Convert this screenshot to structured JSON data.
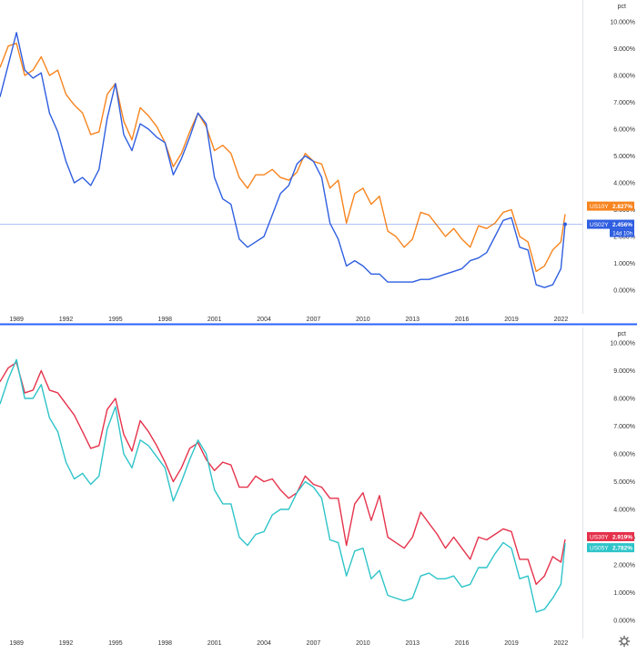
{
  "colors": {
    "us10y": "#f7841e",
    "us02y": "#2f5ee0",
    "us30y": "#e5324b",
    "us05y": "#2ec4c9",
    "axis_text": "#333333",
    "separator": "#2962ff",
    "grid": "#eeeeee"
  },
  "chart_data": [
    {
      "type": "line",
      "unit_label": "pct",
      "x_ticks": [
        "1989",
        "1992",
        "1995",
        "1998",
        "2001",
        "2004",
        "2007",
        "2010",
        "2013",
        "2016",
        "2019",
        "2022"
      ],
      "y_ticks": [
        "10.000%",
        "9.000%",
        "8.000%",
        "7.000%",
        "6.000%",
        "5.000%",
        "4.000%",
        "3.000%",
        "2.000%",
        "1.000%",
        "0.000%"
      ],
      "xlim": [
        1988.0,
        2023.3
      ],
      "ylim": [
        -0.4,
        10.2
      ],
      "legend": [
        {
          "symbol": "US10Y",
          "value": "2.827%"
        },
        {
          "symbol": "US02Y",
          "value": "2.456%",
          "countdown": "14d 10h"
        }
      ],
      "series": [
        {
          "name": "US10Y",
          "x": [
            1988.0,
            1988.5,
            1989.0,
            1989.5,
            1990.0,
            1990.5,
            1991.0,
            1991.5,
            1992.0,
            1992.5,
            1993.0,
            1993.5,
            1994.0,
            1994.5,
            1995.0,
            1995.5,
            1996.0,
            1996.5,
            1997.0,
            1997.5,
            1998.0,
            1998.5,
            1999.0,
            1999.5,
            2000.0,
            2000.5,
            2001.0,
            2001.5,
            2002.0,
            2002.5,
            2003.0,
            2003.5,
            2004.0,
            2004.5,
            2005.0,
            2005.5,
            2006.0,
            2006.5,
            2007.0,
            2007.5,
            2008.0,
            2008.5,
            2009.0,
            2009.5,
            2010.0,
            2010.5,
            2011.0,
            2011.5,
            2012.0,
            2012.5,
            2013.0,
            2013.5,
            2014.0,
            2014.5,
            2015.0,
            2015.5,
            2016.0,
            2016.5,
            2017.0,
            2017.5,
            2018.0,
            2018.5,
            2019.0,
            2019.5,
            2020.0,
            2020.5,
            2021.0,
            2021.5,
            2022.0,
            2022.25
          ],
          "values": [
            8.3,
            9.1,
            9.2,
            8.0,
            8.2,
            8.7,
            8.0,
            8.2,
            7.3,
            6.9,
            6.6,
            5.8,
            5.9,
            7.3,
            7.7,
            6.3,
            5.6,
            6.8,
            6.5,
            6.1,
            5.5,
            4.6,
            5.1,
            5.9,
            6.6,
            6.1,
            5.2,
            5.4,
            5.1,
            4.2,
            3.8,
            4.3,
            4.3,
            4.5,
            4.2,
            4.1,
            4.4,
            5.1,
            4.8,
            4.7,
            3.8,
            4.1,
            2.5,
            3.6,
            3.8,
            3.2,
            3.5,
            2.2,
            2.0,
            1.6,
            1.9,
            2.9,
            2.8,
            2.4,
            2.0,
            2.3,
            1.9,
            1.6,
            2.4,
            2.3,
            2.5,
            2.9,
            3.0,
            2.0,
            1.8,
            0.7,
            0.9,
            1.5,
            1.8,
            2.83
          ]
        },
        {
          "name": "US02Y",
          "x": [
            1988.0,
            1988.5,
            1989.0,
            1989.5,
            1990.0,
            1990.5,
            1991.0,
            1991.5,
            1992.0,
            1992.5,
            1993.0,
            1993.5,
            1994.0,
            1994.5,
            1995.0,
            1995.5,
            1996.0,
            1996.5,
            1997.0,
            1997.5,
            1998.0,
            1998.5,
            1999.0,
            1999.5,
            2000.0,
            2000.5,
            2001.0,
            2001.5,
            2002.0,
            2002.5,
            2003.0,
            2003.5,
            2004.0,
            2004.5,
            2005.0,
            2005.5,
            2006.0,
            2006.5,
            2007.0,
            2007.5,
            2008.0,
            2008.5,
            2009.0,
            2009.5,
            2010.0,
            2010.5,
            2011.0,
            2011.5,
            2012.0,
            2012.5,
            2013.0,
            2013.5,
            2014.0,
            2014.5,
            2015.0,
            2015.5,
            2016.0,
            2016.5,
            2017.0,
            2017.5,
            2018.0,
            2018.5,
            2019.0,
            2019.5,
            2020.0,
            2020.5,
            2021.0,
            2021.5,
            2022.0,
            2022.25
          ],
          "values": [
            7.2,
            8.4,
            9.6,
            8.2,
            7.9,
            8.1,
            6.6,
            5.9,
            4.8,
            4.0,
            4.2,
            3.9,
            4.5,
            6.4,
            7.7,
            5.8,
            5.2,
            6.2,
            6.0,
            5.7,
            5.5,
            4.3,
            4.9,
            5.7,
            6.6,
            6.2,
            4.2,
            3.4,
            3.2,
            1.9,
            1.6,
            1.8,
            2.0,
            2.8,
            3.6,
            3.9,
            4.7,
            5.0,
            4.8,
            4.2,
            2.5,
            1.9,
            0.9,
            1.1,
            0.9,
            0.6,
            0.6,
            0.3,
            0.3,
            0.3,
            0.3,
            0.4,
            0.4,
            0.5,
            0.6,
            0.7,
            0.8,
            1.1,
            1.2,
            1.4,
            2.0,
            2.6,
            2.7,
            1.6,
            1.5,
            0.2,
            0.1,
            0.2,
            0.8,
            2.456
          ]
        }
      ]
    },
    {
      "type": "line",
      "unit_label": "pct",
      "x_ticks": [
        "1989",
        "1992",
        "1995",
        "1998",
        "2001",
        "2004",
        "2007",
        "2010",
        "2013",
        "2016",
        "2019",
        "2022"
      ],
      "y_ticks": [
        "10.000%",
        "9.000%",
        "8.000%",
        "7.000%",
        "6.000%",
        "5.000%",
        "4.000%",
        "3.000%",
        "2.000%",
        "1.000%",
        "0.000%"
      ],
      "xlim": [
        1988.0,
        2023.3
      ],
      "ylim": [
        -0.4,
        10.2
      ],
      "legend": [
        {
          "symbol": "US30Y",
          "value": "2.919%"
        },
        {
          "symbol": "US05Y",
          "value": "2.782%"
        }
      ],
      "series": [
        {
          "name": "US30Y",
          "x": [
            1988.0,
            1988.5,
            1989.0,
            1989.5,
            1990.0,
            1990.5,
            1991.0,
            1991.5,
            1992.0,
            1992.5,
            1993.0,
            1993.5,
            1994.0,
            1994.5,
            1995.0,
            1995.5,
            1996.0,
            1996.5,
            1997.0,
            1997.5,
            1998.0,
            1998.5,
            1999.0,
            1999.5,
            2000.0,
            2000.5,
            2001.0,
            2001.5,
            2002.0,
            2002.5,
            2003.0,
            2003.5,
            2004.0,
            2004.5,
            2005.0,
            2005.5,
            2006.0,
            2006.5,
            2007.0,
            2007.5,
            2008.0,
            2008.5,
            2009.0,
            2009.5,
            2010.0,
            2010.5,
            2011.0,
            2011.5,
            2012.0,
            2012.5,
            2013.0,
            2013.5,
            2014.0,
            2014.5,
            2015.0,
            2015.5,
            2016.0,
            2016.5,
            2017.0,
            2017.5,
            2018.0,
            2018.5,
            2019.0,
            2019.5,
            2020.0,
            2020.5,
            2021.0,
            2021.5,
            2022.0,
            2022.25
          ],
          "values": [
            8.6,
            9.1,
            9.3,
            8.2,
            8.3,
            9.0,
            8.3,
            8.2,
            7.8,
            7.4,
            6.8,
            6.2,
            6.3,
            7.6,
            8.0,
            6.7,
            6.1,
            7.2,
            6.8,
            6.3,
            5.7,
            5.0,
            5.5,
            6.2,
            6.4,
            5.8,
            5.4,
            5.7,
            5.6,
            4.8,
            4.8,
            5.2,
            5.0,
            5.1,
            4.7,
            4.4,
            4.6,
            5.2,
            4.9,
            4.8,
            4.4,
            4.4,
            2.7,
            4.2,
            4.6,
            3.6,
            4.5,
            3.0,
            2.8,
            2.6,
            3.0,
            3.9,
            3.5,
            3.1,
            2.6,
            3.0,
            2.6,
            2.2,
            3.0,
            2.9,
            3.1,
            3.3,
            3.2,
            2.2,
            2.2,
            1.3,
            1.6,
            2.3,
            2.1,
            2.919
          ]
        },
        {
          "name": "US05Y",
          "x": [
            1988.0,
            1988.5,
            1989.0,
            1989.5,
            1990.0,
            1990.5,
            1991.0,
            1991.5,
            1992.0,
            1992.5,
            1993.0,
            1993.5,
            1994.0,
            1994.5,
            1995.0,
            1995.5,
            1996.0,
            1996.5,
            1997.0,
            1997.5,
            1998.0,
            1998.5,
            1999.0,
            1999.5,
            2000.0,
            2000.5,
            2001.0,
            2001.5,
            2002.0,
            2002.5,
            2003.0,
            2003.5,
            2004.0,
            2004.5,
            2005.0,
            2005.5,
            2006.0,
            2006.5,
            2007.0,
            2007.5,
            2008.0,
            2008.5,
            2009.0,
            2009.5,
            2010.0,
            2010.5,
            2011.0,
            2011.5,
            2012.0,
            2012.5,
            2013.0,
            2013.5,
            2014.0,
            2014.5,
            2015.0,
            2015.5,
            2016.0,
            2016.5,
            2017.0,
            2017.5,
            2018.0,
            2018.5,
            2019.0,
            2019.5,
            2020.0,
            2020.5,
            2021.0,
            2021.5,
            2022.0,
            2022.25
          ],
          "values": [
            7.8,
            8.7,
            9.4,
            8.0,
            8.0,
            8.5,
            7.3,
            6.8,
            5.7,
            5.1,
            5.3,
            4.9,
            5.2,
            6.9,
            7.7,
            6.0,
            5.5,
            6.5,
            6.3,
            5.9,
            5.5,
            4.3,
            5.0,
            5.8,
            6.5,
            6.0,
            4.7,
            4.2,
            4.2,
            3.0,
            2.7,
            3.1,
            3.2,
            3.8,
            4.0,
            4.0,
            4.6,
            5.0,
            4.8,
            4.4,
            2.9,
            2.8,
            1.6,
            2.5,
            2.6,
            1.5,
            1.8,
            0.9,
            0.8,
            0.7,
            0.8,
            1.6,
            1.7,
            1.5,
            1.5,
            1.6,
            1.2,
            1.3,
            1.9,
            1.9,
            2.4,
            2.8,
            2.6,
            1.5,
            1.6,
            0.3,
            0.4,
            0.8,
            1.3,
            2.782
          ]
        }
      ]
    }
  ]
}
